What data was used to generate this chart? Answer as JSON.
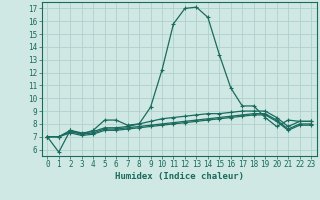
{
  "xlabel": "Humidex (Indice chaleur)",
  "xlim": [
    -0.5,
    23.5
  ],
  "ylim": [
    5.5,
    17.5
  ],
  "xticks": [
    0,
    1,
    2,
    3,
    4,
    5,
    6,
    7,
    8,
    9,
    10,
    11,
    12,
    13,
    14,
    15,
    16,
    17,
    18,
    19,
    20,
    21,
    22,
    23
  ],
  "yticks": [
    6,
    7,
    8,
    9,
    10,
    11,
    12,
    13,
    14,
    15,
    16,
    17
  ],
  "background_color": "#cfe8e3",
  "grid_color": "#b0d0cc",
  "line_color": "#1a6b5e",
  "line1": [
    7.0,
    5.8,
    7.5,
    7.2,
    7.5,
    8.3,
    8.3,
    7.9,
    8.0,
    9.3,
    12.2,
    15.8,
    17.0,
    17.1,
    16.3,
    13.4,
    10.8,
    9.4,
    9.4,
    8.5,
    7.8,
    8.3,
    8.2,
    8.2
  ],
  "line2": [
    7.0,
    7.0,
    7.5,
    7.3,
    7.4,
    7.7,
    7.7,
    7.8,
    8.0,
    8.2,
    8.4,
    8.5,
    8.6,
    8.7,
    8.8,
    8.8,
    8.9,
    9.0,
    9.0,
    9.0,
    8.5,
    7.8,
    8.2,
    8.2
  ],
  "line3": [
    7.0,
    7.0,
    7.4,
    7.2,
    7.3,
    7.6,
    7.6,
    7.7,
    7.8,
    7.9,
    8.0,
    8.1,
    8.2,
    8.3,
    8.4,
    8.5,
    8.6,
    8.7,
    8.8,
    8.8,
    8.3,
    7.6,
    8.0,
    8.0
  ],
  "line4": [
    7.0,
    7.0,
    7.3,
    7.1,
    7.2,
    7.5,
    7.5,
    7.6,
    7.7,
    7.8,
    7.9,
    8.0,
    8.1,
    8.2,
    8.3,
    8.4,
    8.5,
    8.6,
    8.7,
    8.7,
    8.2,
    7.5,
    7.9,
    7.9
  ],
  "markersize": 2.5,
  "linewidth": 0.9
}
